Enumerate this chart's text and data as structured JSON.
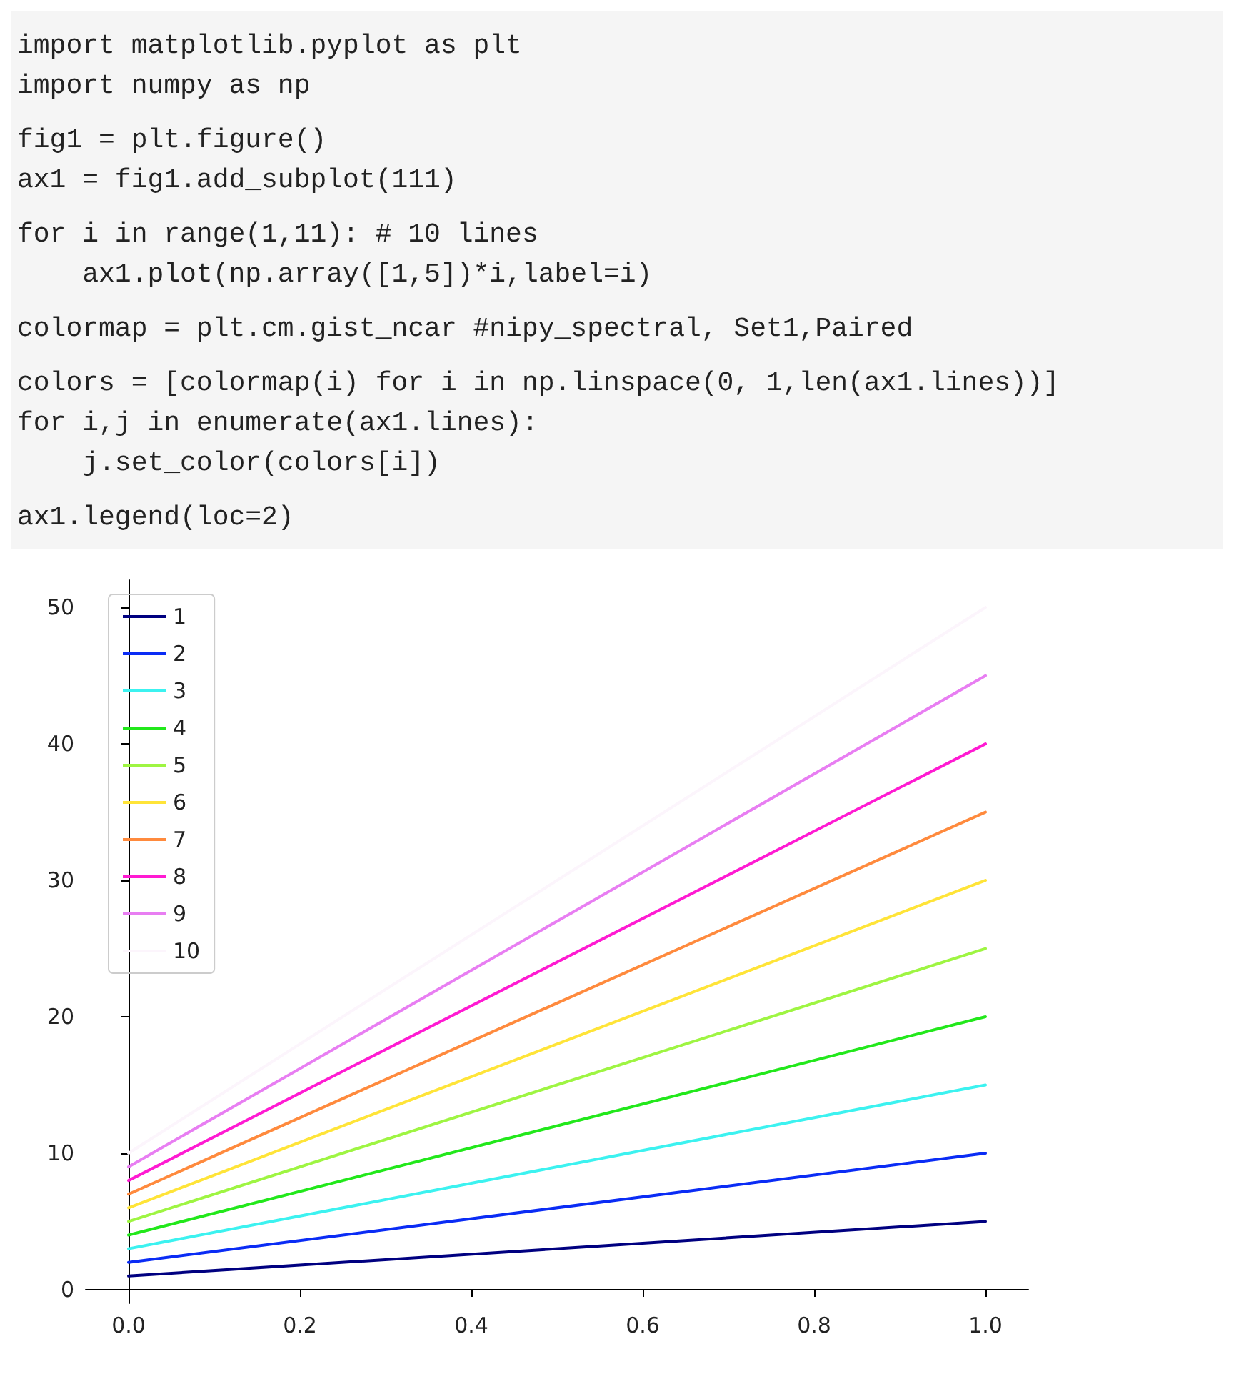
{
  "chart_data": {
    "type": "line",
    "annotations": [
      "import matplotlib.pyplot as plt",
      "import numpy as np",
      "fig1 = plt.figure()",
      "ax1 = fig1.add_subplot(111)",
      "for i in range(1,11): # 10 lines",
      "    ax1.plot(np.array([1,5])*i,label=i)",
      "colormap = plt.cm.gist_ncar #nipy_spectral, Set1,Paired",
      "colors = [colormap(i) for i in np.linspace(0, 1,len(ax1.lines))]",
      "for i,j in enumerate(ax1.lines):",
      "    j.set_color(colors[i])",
      "ax1.legend(loc=2)"
    ],
    "x": [
      0,
      1
    ],
    "series": [
      {
        "name": "1",
        "color": "#000080",
        "values": [
          1,
          5
        ]
      },
      {
        "name": "2",
        "color": "#0a2cf5",
        "values": [
          2,
          10
        ]
      },
      {
        "name": "3",
        "color": "#3cf2f0",
        "values": [
          3,
          15
        ]
      },
      {
        "name": "4",
        "color": "#22e81b",
        "values": [
          4,
          20
        ]
      },
      {
        "name": "5",
        "color": "#9ef542",
        "values": [
          5,
          25
        ]
      },
      {
        "name": "6",
        "color": "#ffe438",
        "values": [
          6,
          30
        ]
      },
      {
        "name": "7",
        "color": "#ff8a3d",
        "values": [
          7,
          35
        ]
      },
      {
        "name": "8",
        "color": "#ff1ad2",
        "values": [
          8,
          40
        ]
      },
      {
        "name": "9",
        "color": "#e87ef2",
        "values": [
          9,
          45
        ]
      },
      {
        "name": "10",
        "color": "#fcf5fc",
        "values": [
          10,
          50
        ]
      }
    ],
    "xlim": [
      -0.05,
      1.05
    ],
    "xticks": [
      {
        "value": 0,
        "label": "0.0"
      },
      {
        "value": 0.2,
        "label": "0.2"
      },
      {
        "value": 0.4,
        "label": "0.4"
      },
      {
        "value": 0.6,
        "label": "0.6"
      },
      {
        "value": 0.8,
        "label": "0.8"
      },
      {
        "value": 1,
        "label": "1.0"
      }
    ],
    "ylim": [
      -1,
      52
    ],
    "yticks": [
      0,
      10,
      20,
      30,
      40,
      50
    ],
    "legend": "top left",
    "grid": false,
    "marker": "none",
    "line_style": "solid"
  }
}
